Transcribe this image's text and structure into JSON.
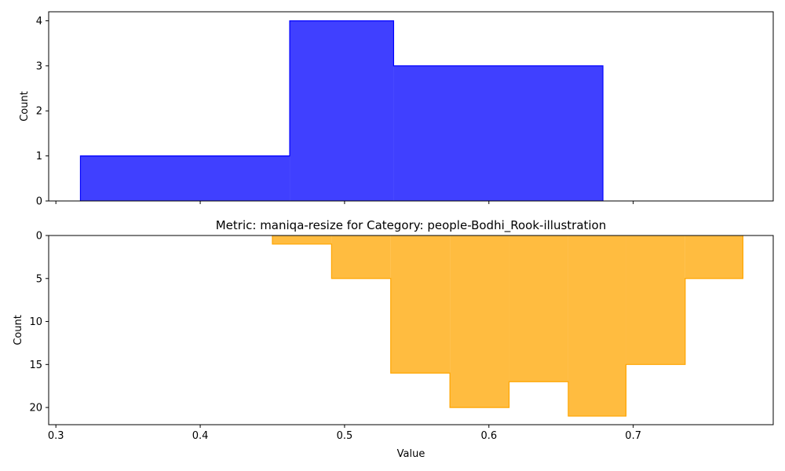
{
  "chart_data": [
    {
      "type": "histogram-step",
      "title": "",
      "xlabel": "",
      "ylabel": "Count",
      "xlim": [
        0.295,
        0.797
      ],
      "ylim": [
        0,
        4.2
      ],
      "yticks": [
        "0",
        "1",
        "2",
        "3",
        "4"
      ],
      "show_xtick_labels": false,
      "y_inverted": false,
      "color": "#0000ff",
      "bins": [
        {
          "x0": 0.317,
          "x1": 0.462,
          "count": 1
        },
        {
          "x0": 0.462,
          "x1": 0.534,
          "count": 4
        },
        {
          "x0": 0.534,
          "x1": 0.679,
          "count": 3
        }
      ]
    },
    {
      "type": "histogram-step",
      "title": "Metric: maniqa-resize for Category: people-Bodhi_Rook-illustration",
      "xlabel": "Value",
      "ylabel": "Count",
      "xlim": [
        0.295,
        0.797
      ],
      "ylim": [
        0,
        22
      ],
      "yticks": [
        "0",
        "5",
        "10",
        "15",
        "20"
      ],
      "show_xtick_labels": true,
      "xticks": [
        "0.3",
        "0.4",
        "0.5",
        "0.6",
        "0.7"
      ],
      "y_inverted": true,
      "color": "#ffa500",
      "bins": [
        {
          "x0": 0.45,
          "x1": 0.491,
          "count": 1
        },
        {
          "x0": 0.491,
          "x1": 0.532,
          "count": 5
        },
        {
          "x0": 0.532,
          "x1": 0.573,
          "count": 16
        },
        {
          "x0": 0.573,
          "x1": 0.614,
          "count": 20
        },
        {
          "x0": 0.614,
          "x1": 0.655,
          "count": 17
        },
        {
          "x0": 0.655,
          "x1": 0.695,
          "count": 21
        },
        {
          "x0": 0.695,
          "x1": 0.736,
          "count": 15
        },
        {
          "x0": 0.736,
          "x1": 0.776,
          "count": 5
        }
      ]
    }
  ]
}
